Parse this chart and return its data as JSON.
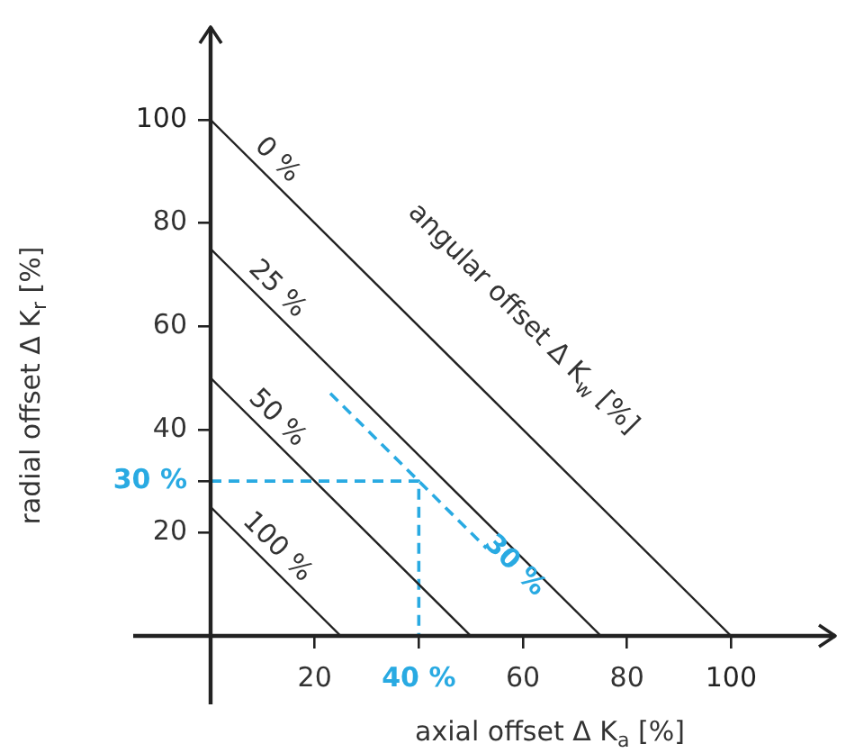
{
  "chart_data": {
    "type": "line",
    "xlabel": "axial offset Δ K$_{a}$ [%]",
    "ylabel": "radial offset Δ K$_{r}$ [%]",
    "annotations": [
      "angular offset Δ K$_{w}$ [%]"
    ],
    "xlim": [
      0,
      120
    ],
    "ylim": [
      0,
      118
    ],
    "xticks": [
      20,
      {
        "value": 40,
        "label": "40 %"
      },
      60,
      80,
      100
    ],
    "yticks": [
      20,
      {
        "value": 30,
        "label": "30 %"
      },
      40,
      60,
      80,
      100
    ],
    "grid": false,
    "legend": false,
    "line_style": "solid",
    "series": [
      {
        "name": "0 %",
        "color": "#222222",
        "x": [
          0,
          100
        ],
        "values": [
          100,
          0
        ]
      },
      {
        "name": "25 %",
        "color": "#222222",
        "x": [
          0,
          75
        ],
        "values": [
          75,
          0
        ]
      },
      {
        "name": "50 %",
        "color": "#222222",
        "x": [
          0,
          50
        ],
        "values": [
          50,
          0
        ]
      },
      {
        "name": "100 %",
        "color": "#222222",
        "x": [
          0,
          25
        ],
        "values": [
          25,
          0
        ]
      },
      {
        "name": "30 %",
        "color": "#29aae2",
        "line_style": "dashed",
        "x": [
          23,
          53
        ],
        "values": [
          47,
          17
        ]
      },
      {
        "color": "#29aae2",
        "line_style": "dashed",
        "x": [
          0,
          40,
          40
        ],
        "values": [
          30,
          30,
          0
        ]
      }
    ]
  }
}
